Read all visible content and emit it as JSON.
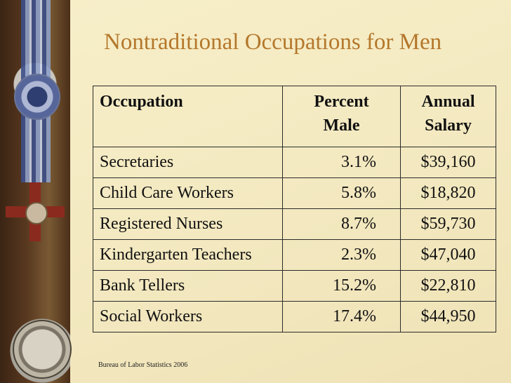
{
  "title": "Nontraditional Occupations for Men",
  "table": {
    "headers": {
      "occupation": "Occupation",
      "percent_line1": "Percent",
      "percent_line2": "Male",
      "salary_line1": "Annual",
      "salary_line2": "Salary"
    },
    "rows": [
      {
        "occupation": "Secretaries",
        "percent": "3.1%",
        "salary": "$39,160"
      },
      {
        "occupation": "Child Care Workers",
        "percent": "5.8%",
        "salary": "$18,820"
      },
      {
        "occupation": "Registered Nurses",
        "percent": "8.7%",
        "salary": "$59,730"
      },
      {
        "occupation": "Kindergarten Teachers",
        "percent": "2.3%",
        "salary": "$47,040"
      },
      {
        "occupation": "Bank Tellers",
        "percent": "15.2%",
        "salary": "$22,810"
      },
      {
        "occupation": "Social Workers",
        "percent": "17.4%",
        "salary": "$44,950"
      }
    ]
  },
  "footnote": "Bureau of Labor Statistics 2006",
  "colors": {
    "title": "#b4772b",
    "background": "#f5ecc3"
  }
}
